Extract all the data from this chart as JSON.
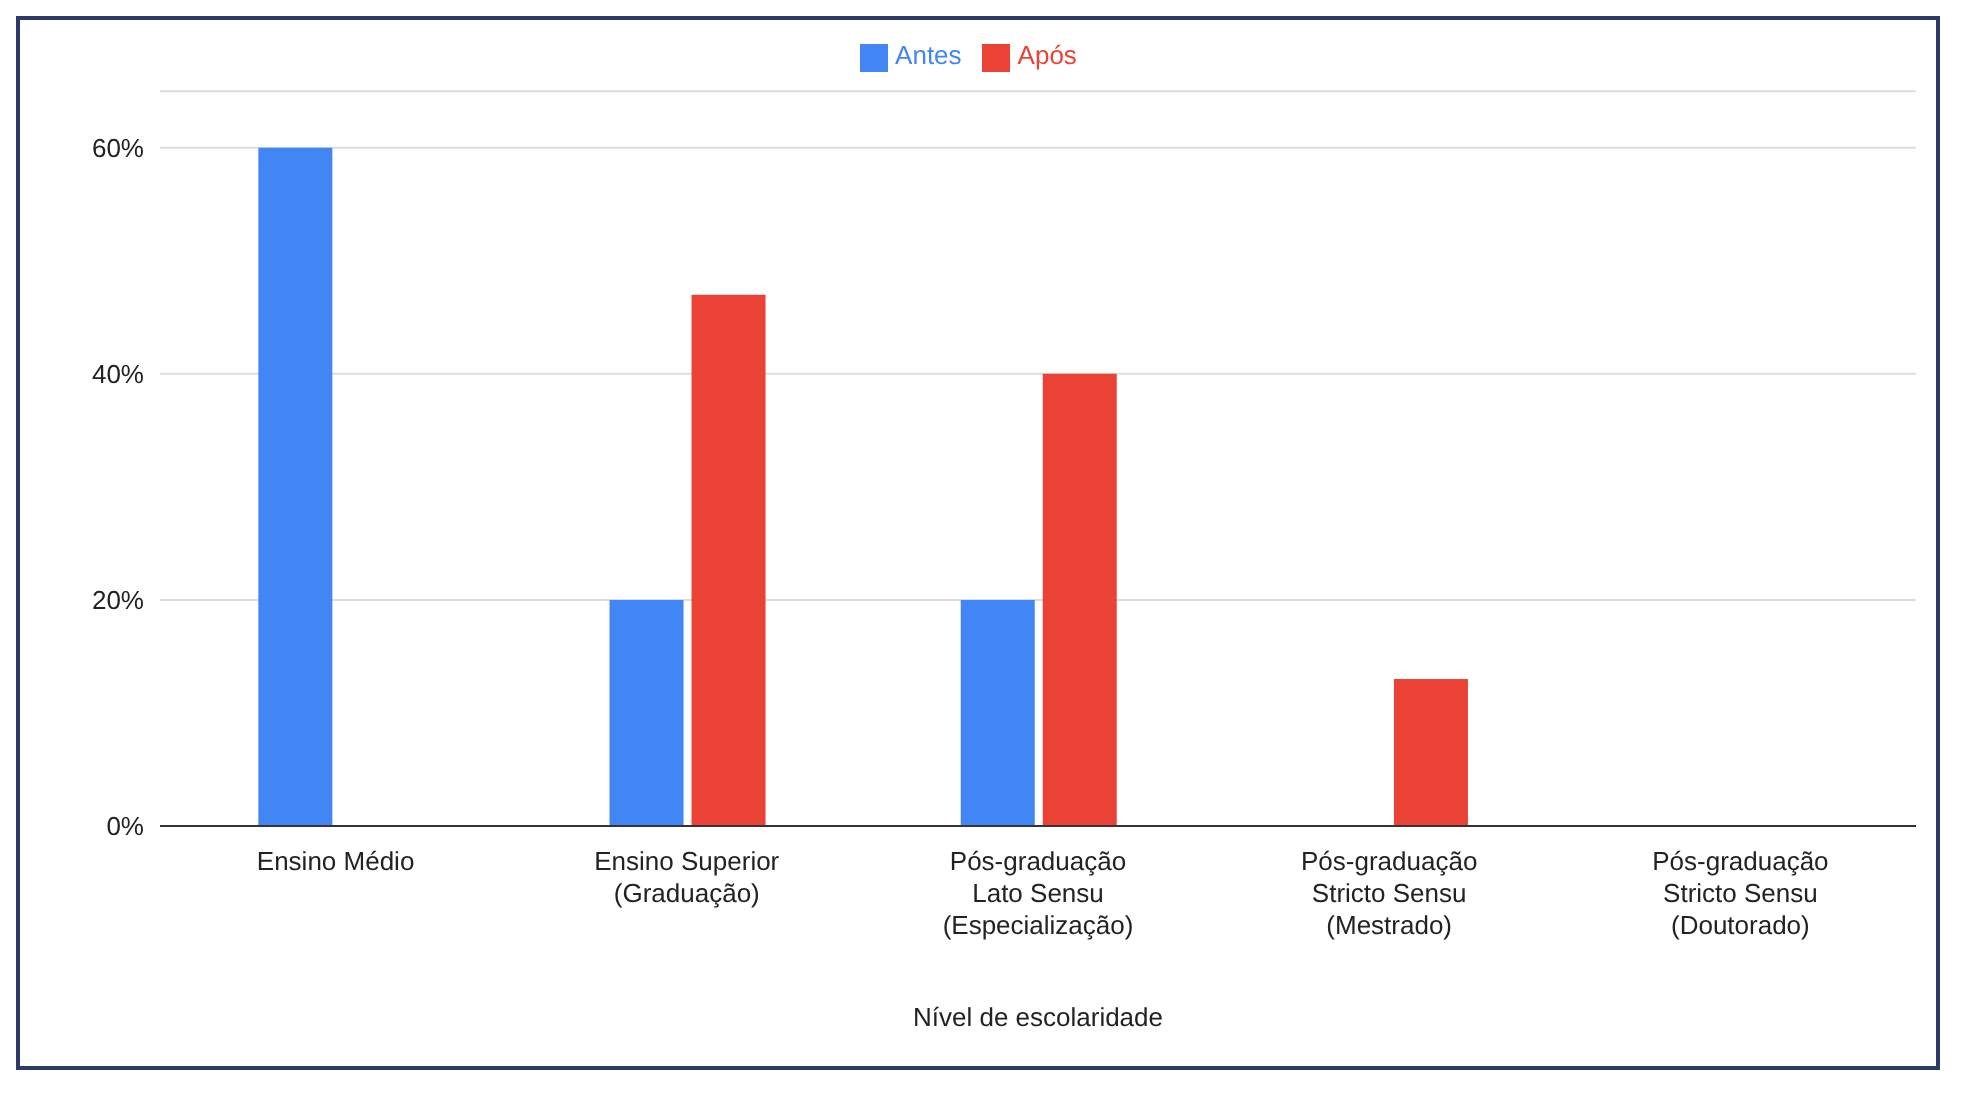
{
  "chart_data": {
    "type": "bar",
    "xlabel": "Nível de escolaridade",
    "categories": [
      "Ensino Médio",
      "Ensino Superior\n(Graduação)",
      "Pós-graduação\nLato Sensu\n(Especialização)",
      "Pós-graduação\nStricto Sensu\n(Mestrado)",
      "Pós-graduação\nStricto Sensu\n(Doutorado)"
    ],
    "series": [
      {
        "name": "Antes",
        "color": "#4285f4",
        "values": [
          60,
          20,
          20,
          0,
          0
        ]
      },
      {
        "name": "Após",
        "color": "#ea4335",
        "values": [
          0,
          47,
          40,
          13,
          0
        ]
      }
    ],
    "ylim": [
      0,
      65
    ],
    "yticks": [
      {
        "value": 0,
        "label": "0%"
      },
      {
        "value": 20,
        "label": "20%"
      },
      {
        "value": 40,
        "label": "40%"
      },
      {
        "value": 60,
        "label": "60%"
      }
    ],
    "grid": "y",
    "legend": "top"
  }
}
